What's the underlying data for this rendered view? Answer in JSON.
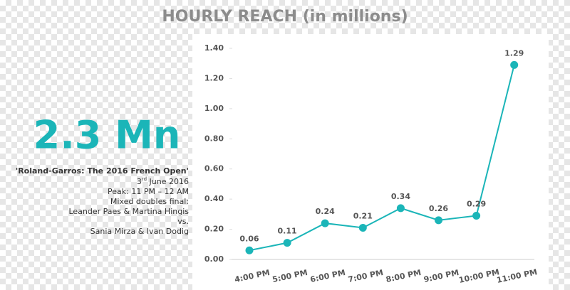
{
  "summary": {
    "headline": "2.3 Mn",
    "event": "'Roland-Garros: The 2016 French Open'",
    "date_day": "3",
    "date_suffix": "rd",
    "date_rest": "June 2016",
    "lines": [
      "Peak: 11 PM – 12 AM",
      "Mixed doubles final:",
      "Leander Paes & Martina Hingis",
      "vs.",
      "Sania Mirza & Ivan Dodig"
    ]
  },
  "chart_data": {
    "type": "line",
    "title": "HOURLY REACH (in millions)",
    "categories": [
      "4:00 PM",
      "5:00 PM",
      "6:00 PM",
      "7:00 PM",
      "8:00 PM",
      "9:00 PM",
      "10:00 PM",
      "11:00 PM"
    ],
    "values": [
      0.06,
      0.11,
      0.24,
      0.21,
      0.34,
      0.26,
      0.29,
      1.29
    ],
    "color": "#1bb5b8",
    "ylim": [
      0,
      1.4
    ],
    "yticks": [
      {
        "value": 0,
        "label": "0.00"
      },
      {
        "value": 0.2,
        "label": "0.20"
      },
      {
        "value": 0.4,
        "label": "0.40"
      },
      {
        "value": 0.6,
        "label": "0.60"
      },
      {
        "value": 0.8,
        "label": "0.80"
      },
      {
        "value": 1.0,
        "label": "1.00"
      },
      {
        "value": 1.2,
        "label": "1.20"
      },
      {
        "value": 1.4,
        "label": "1.40"
      }
    ]
  }
}
